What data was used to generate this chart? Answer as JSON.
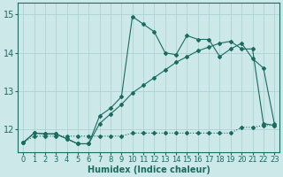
{
  "bg_color": "#cce8e8",
  "line_color": "#1a6b60",
  "grid_color": "#aacece",
  "xlabel": "Humidex (Indice chaleur)",
  "xlabel_fontsize": 7,
  "tick_fontsize": 6,
  "ylabel_ticks": [
    12,
    13,
    14,
    15
  ],
  "xlim": [
    -0.5,
    23.5
  ],
  "ylim": [
    11.4,
    15.3
  ],
  "line1_x": [
    0,
    1,
    2,
    3,
    4,
    5,
    6,
    7,
    8,
    9,
    10,
    11,
    12,
    13,
    14,
    15,
    16,
    17,
    18,
    19,
    20,
    21,
    22,
    23
  ],
  "line1_y": [
    11.65,
    11.82,
    11.82,
    11.82,
    11.82,
    11.82,
    11.82,
    11.82,
    11.82,
    11.82,
    11.9,
    11.9,
    11.9,
    11.9,
    11.9,
    11.9,
    11.9,
    11.9,
    11.9,
    11.9,
    12.05,
    12.05,
    12.1,
    12.1
  ],
  "line2_x": [
    0,
    1,
    2,
    3,
    4,
    5,
    6,
    7,
    8,
    9,
    10,
    11,
    12,
    13,
    14,
    15,
    16,
    17,
    18,
    19,
    20,
    21,
    22,
    23
  ],
  "line2_y": [
    11.65,
    11.9,
    11.88,
    11.88,
    11.75,
    11.62,
    11.62,
    12.35,
    12.55,
    12.85,
    14.95,
    14.75,
    14.55,
    14.0,
    13.95,
    14.45,
    14.35,
    14.35,
    13.9,
    14.1,
    14.25,
    13.85,
    13.6,
    12.15
  ],
  "line3_x": [
    0,
    1,
    2,
    3,
    4,
    5,
    6,
    7,
    8,
    9,
    10,
    11,
    12,
    13,
    14,
    15,
    16,
    17,
    18,
    19,
    20,
    21,
    22,
    23
  ],
  "line3_y": [
    11.65,
    11.9,
    11.88,
    11.88,
    11.75,
    11.62,
    11.62,
    12.15,
    12.4,
    12.65,
    12.95,
    13.15,
    13.35,
    13.55,
    13.75,
    13.9,
    14.05,
    14.15,
    14.25,
    14.3,
    14.1,
    14.1,
    12.15,
    12.1
  ]
}
